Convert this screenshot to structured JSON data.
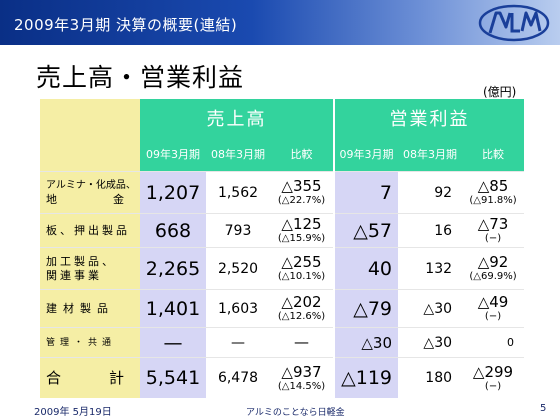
{
  "header": {
    "title": "2009年3月期 決算の概要(連結)",
    "logo_text": "NLM"
  },
  "page": {
    "title": "売上高・営業利益",
    "unit": "(億円)"
  },
  "table": {
    "groups": {
      "sales": "売上高",
      "operating_income": "営業利益"
    },
    "columns": {
      "fy09": "09年3月期",
      "fy08": "08年3月期",
      "compare": "比較"
    },
    "rows": [
      {
        "label_line1": "アルミナ・化成品、",
        "label_line2_a": "地",
        "label_line2_b": "金",
        "sales_fy09": "1,207",
        "sales_fy08": "1,562",
        "sales_cmp": "△355",
        "sales_pct": "(△22.7%)",
        "op_fy09": "7",
        "op_fy08": "92",
        "op_cmp": "△85",
        "op_pct": "(△91.8%)"
      },
      {
        "label": "板、押出製品",
        "sales_fy09": "668",
        "sales_fy08": "793",
        "sales_cmp": "△125",
        "sales_pct": "(△15.9%)",
        "op_fy09": "△57",
        "op_fy08": "16",
        "op_cmp": "△73",
        "op_pct": "(−)"
      },
      {
        "label_line1": "加工製品、",
        "label_line2": "関連事業",
        "sales_fy09": "2,265",
        "sales_fy08": "2,520",
        "sales_cmp": "△255",
        "sales_pct": "(△10.1%)",
        "op_fy09": "40",
        "op_fy08": "132",
        "op_cmp": "△92",
        "op_pct": "(△69.9%)"
      },
      {
        "label": "建材製品",
        "sales_fy09": "1,401",
        "sales_fy08": "1,603",
        "sales_cmp": "△202",
        "sales_pct": "(△12.6%)",
        "op_fy09": "△79",
        "op_fy08": "△30",
        "op_cmp": "△49",
        "op_pct": "(−)"
      },
      {
        "label": "管理・共通",
        "sales_fy09": "—",
        "sales_fy08": "—",
        "sales_cmp": "—",
        "op_fy09": "△30",
        "op_fy08": "△30",
        "op_cmp": "0"
      },
      {
        "label_a": "合",
        "label_b": "計",
        "sales_fy09": "5,541",
        "sales_fy08": "6,478",
        "sales_cmp": "△937",
        "sales_pct": "(△14.5%)",
        "op_fy09": "△119",
        "op_fy08": "180",
        "op_cmp": "△299",
        "op_pct": "(−)"
      }
    ]
  },
  "footer": {
    "date": "2009年 5月19日",
    "center": "アルミのことなら日軽金",
    "page_number": "5"
  },
  "colors": {
    "header_dark": "#0a2f86",
    "header_green": "#33d39d",
    "label_yellow": "#f5eea5",
    "highlight_lavender": "#d6d6f5"
  }
}
